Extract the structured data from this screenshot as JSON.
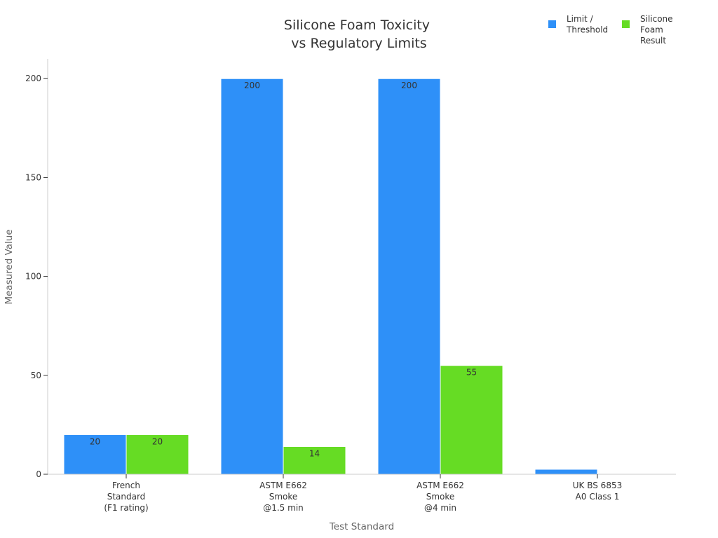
{
  "chart_data": {
    "type": "bar",
    "title_lines": [
      "Silicone Foam Toxicity",
      "vs Regulatory Limits"
    ],
    "xlabel": "Test Standard",
    "ylabel": "Measured Value",
    "categories": [
      [
        "French",
        "Standard",
        "(F1 rating)"
      ],
      [
        "ASTM E662",
        "Smoke",
        "@1.5 min"
      ],
      [
        "ASTM E662",
        "Smoke",
        "@4 min"
      ],
      [
        "UK BS 6853",
        "A0 Class 1"
      ]
    ],
    "series": [
      {
        "name": "Limit / Threshold",
        "name_lines": [
          "Limit /",
          "Threshold"
        ],
        "color": "#2e90f8",
        "values": [
          20,
          200,
          200,
          2.5
        ],
        "labels": [
          "20",
          "200",
          "200",
          ""
        ]
      },
      {
        "name": "Silicone Foam Result",
        "name_lines": [
          "Silicone",
          "Foam",
          "Result"
        ],
        "color": "#66dc24",
        "values": [
          20,
          14,
          55,
          0
        ],
        "labels": [
          "20",
          "14",
          "55",
          ""
        ]
      }
    ],
    "ylim": [
      0,
      210
    ],
    "yticks": [
      0,
      50,
      100,
      150,
      200
    ],
    "grid": false,
    "legend_position": "top-right"
  }
}
